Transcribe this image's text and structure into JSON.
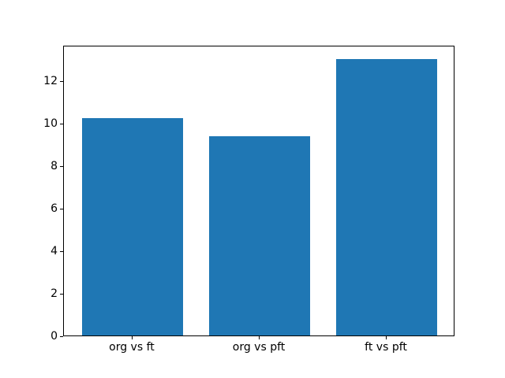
{
  "figure": {
    "background_color": "#ffffff",
    "bar_color": "#1f77b4",
    "spine_color": "#000000",
    "tick_color": "#000000",
    "text_color": "#000000"
  },
  "chart_data": {
    "type": "bar",
    "categories": [
      "org vs ft",
      "org vs pft",
      "ft vs pft"
    ],
    "values": [
      10.2,
      9.35,
      13.0
    ],
    "title": "",
    "xlabel": "",
    "ylabel": "",
    "ylim": [
      0,
      13.65
    ],
    "yticks": [
      0,
      2,
      4,
      6,
      8,
      10,
      12
    ],
    "ytick_labels": [
      "0",
      "2",
      "4",
      "6",
      "8",
      "10",
      "12"
    ],
    "xlim": [
      -0.54,
      2.54
    ],
    "bar_width_data_units": 0.8,
    "grid": false,
    "legend": null
  }
}
